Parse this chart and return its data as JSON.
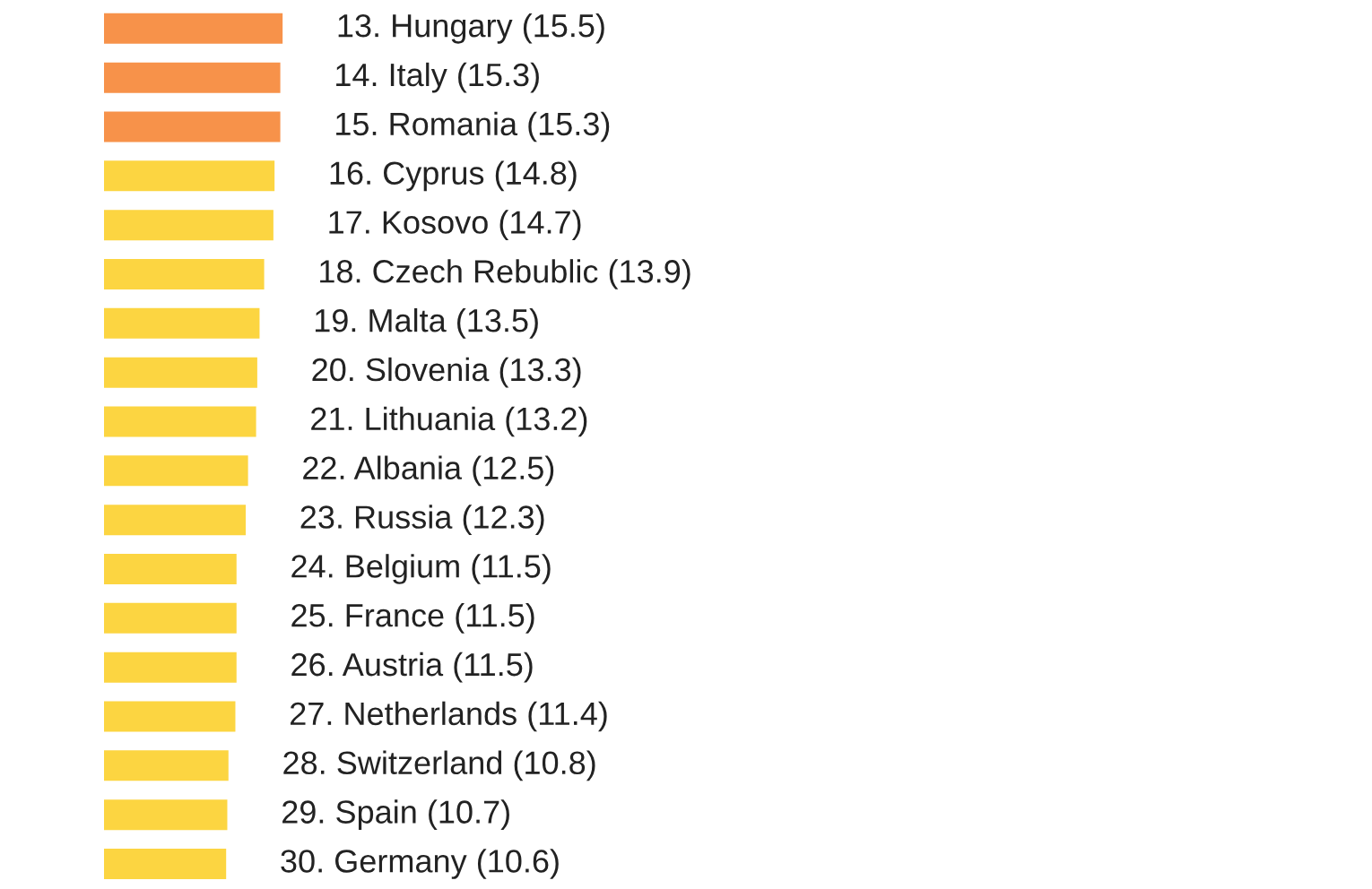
{
  "chart_data": {
    "type": "bar",
    "orientation": "horizontal",
    "categories": [
      null,
      null,
      null,
      null,
      null,
      null,
      null,
      null,
      null,
      null,
      null,
      null,
      null,
      null,
      null,
      null,
      null,
      null
    ],
    "values": [
      15.5,
      15.3,
      15.3,
      14.8,
      14.7,
      13.9,
      13.5,
      13.3,
      13.2,
      12.5,
      12.3,
      11.5,
      11.5,
      11.5,
      11.4,
      10.8,
      10.7,
      10.6
    ],
    "value_labels": [
      "13. Hungary (15.5)",
      "14. Italy (15.3)",
      "15. Romania (15.3)",
      "16. Cyprus (14.8)",
      "17. Kosovo (14.7)",
      "18. Czech Rebublic (13.9)",
      "19. Malta (13.5)",
      "20. Slovenia (13.3)",
      "21. Lithuania (13.2)",
      "22. Albania (12.5)",
      "23. Russia (12.3)",
      "24. Belgium (11.5)",
      "25. France (11.5)",
      "26. Austria (11.5)",
      "27. Netherlands (11.4)",
      "28. Switzerland (10.8)",
      "29. Spain (10.7)",
      "30. Germany (10.6)"
    ],
    "colors": [
      "#f7924a",
      "#f7924a",
      "#f7924a",
      "#fcd541",
      "#fcd541",
      "#fcd541",
      "#fcd541",
      "#fcd541",
      "#fcd541",
      "#fcd541",
      "#fcd541",
      "#fcd541",
      "#fcd541",
      "#fcd541",
      "#fcd541",
      "#fcd541",
      "#fcd541",
      "#fcd541"
    ]
  }
}
